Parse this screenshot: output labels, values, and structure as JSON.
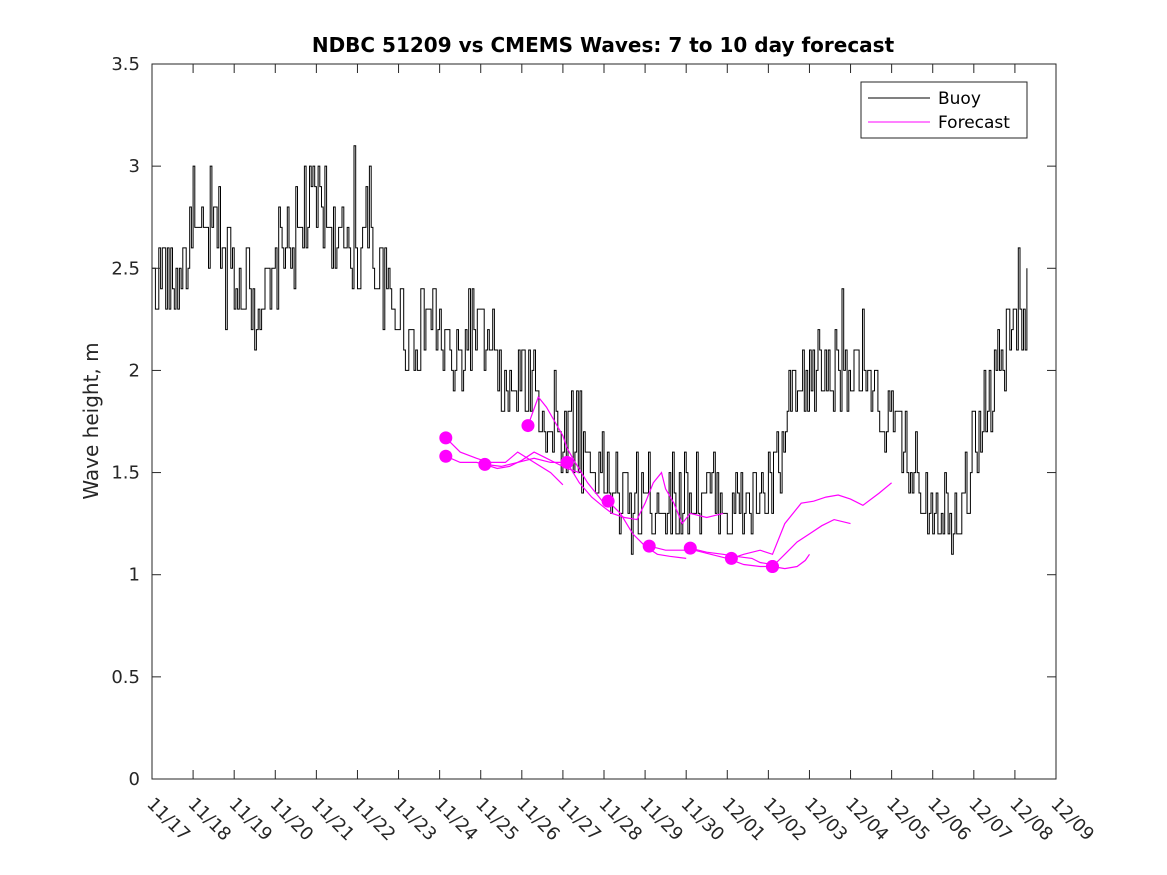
{
  "chart_data": {
    "type": "line",
    "title": "NDBC 51209 vs CMEMS Waves: 7 to 10 day forecast",
    "xlabel": "",
    "ylabel": "Wave height, m",
    "ylim": [
      0,
      3.5
    ],
    "xlim": [
      0,
      22
    ],
    "yticks": [
      0,
      0.5,
      1,
      1.5,
      2,
      2.5,
      3,
      3.5
    ],
    "ytick_labels": [
      "0",
      "0.5",
      "1",
      "1.5",
      "2",
      "2.5",
      "3",
      "3.5"
    ],
    "xticks": [
      0,
      1,
      2,
      3,
      4,
      5,
      6,
      7,
      8,
      9,
      10,
      11,
      12,
      13,
      14,
      15,
      16,
      17,
      18,
      19,
      20,
      21,
      22
    ],
    "xtick_labels": [
      "11/17",
      "11/18",
      "11/19",
      "11/20",
      "11/21",
      "11/22",
      "11/23",
      "11/24",
      "11/25",
      "11/26",
      "11/27",
      "11/28",
      "11/29",
      "11/30",
      "12/01",
      "12/02",
      "12/03",
      "12/04",
      "12/05",
      "12/06",
      "12/07",
      "12/08",
      "12/09"
    ],
    "legend": {
      "position": "top-right",
      "entries": [
        "Buoy",
        "Forecast"
      ]
    },
    "colors": {
      "buoy": "#000000",
      "forecast": "#ff00ff"
    },
    "buoy_anchors": [
      [
        0.0,
        2.45
      ],
      [
        0.3,
        2.5
      ],
      [
        0.5,
        2.4
      ],
      [
        0.8,
        2.55
      ],
      [
        1.0,
        2.6
      ],
      [
        1.3,
        2.65
      ],
      [
        1.5,
        2.7
      ],
      [
        1.8,
        2.6
      ],
      [
        2.0,
        2.5
      ],
      [
        2.3,
        2.45
      ],
      [
        2.6,
        2.35
      ],
      [
        2.9,
        2.35
      ],
      [
        3.0,
        2.5
      ],
      [
        3.2,
        2.65
      ],
      [
        3.5,
        2.6
      ],
      [
        3.8,
        2.75
      ],
      [
        4.0,
        2.85
      ],
      [
        4.3,
        2.75
      ],
      [
        4.6,
        2.6
      ],
      [
        4.9,
        2.5
      ],
      [
        5.2,
        2.7
      ],
      [
        5.5,
        2.45
      ],
      [
        5.8,
        2.3
      ],
      [
        6.0,
        2.3
      ],
      [
        6.3,
        2.15
      ],
      [
        6.5,
        2.2
      ],
      [
        6.8,
        2.3
      ],
      [
        7.0,
        2.2
      ],
      [
        7.3,
        2.0
      ],
      [
        7.6,
        2.1
      ],
      [
        7.9,
        2.25
      ],
      [
        8.1,
        2.1
      ],
      [
        8.4,
        1.95
      ],
      [
        8.7,
        1.85
      ],
      [
        9.0,
        2.0
      ],
      [
        9.2,
        1.9
      ],
      [
        9.5,
        1.8
      ],
      [
        9.8,
        1.65
      ],
      [
        10.0,
        1.7
      ],
      [
        10.3,
        1.7
      ],
      [
        10.6,
        1.55
      ],
      [
        11.0,
        1.5
      ],
      [
        11.3,
        1.4
      ],
      [
        11.6,
        1.3
      ],
      [
        11.8,
        1.35
      ],
      [
        12.0,
        1.35
      ],
      [
        12.3,
        1.4
      ],
      [
        12.6,
        1.35
      ],
      [
        13.0,
        1.4
      ],
      [
        13.3,
        1.4
      ],
      [
        13.7,
        1.4
      ],
      [
        14.0,
        1.35
      ],
      [
        14.3,
        1.3
      ],
      [
        14.6,
        1.35
      ],
      [
        14.9,
        1.4
      ],
      [
        15.1,
        1.45
      ],
      [
        15.3,
        1.55
      ],
      [
        15.5,
        1.8
      ],
      [
        15.8,
        1.9
      ],
      [
        16.0,
        1.95
      ],
      [
        16.3,
        2.0
      ],
      [
        16.6,
        2.0
      ],
      [
        16.8,
        2.05
      ],
      [
        17.0,
        2.0
      ],
      [
        17.3,
        1.9
      ],
      [
        17.6,
        1.85
      ],
      [
        18.0,
        1.7
      ],
      [
        18.3,
        1.6
      ],
      [
        18.6,
        1.5
      ],
      [
        18.9,
        1.4
      ],
      [
        19.2,
        1.35
      ],
      [
        19.5,
        1.3
      ],
      [
        19.8,
        1.45
      ],
      [
        20.0,
        1.6
      ],
      [
        20.3,
        1.85
      ],
      [
        20.6,
        2.05
      ],
      [
        20.9,
        2.2
      ],
      [
        21.1,
        2.3
      ],
      [
        21.3,
        2.3
      ]
    ],
    "buoy_peaks": [
      [
        1.0,
        3.0
      ],
      [
        1.4,
        3.0
      ],
      [
        3.5,
        2.9
      ],
      [
        3.7,
        3.0
      ],
      [
        4.2,
        3.0
      ],
      [
        4.9,
        3.1
      ],
      [
        5.3,
        3.0
      ],
      [
        2.5,
        2.1
      ],
      [
        1.8,
        2.2
      ],
      [
        2.1,
        2.3
      ],
      [
        7.7,
        2.4
      ],
      [
        8.3,
        2.3
      ],
      [
        9.3,
        2.1
      ],
      [
        9.8,
        2.0
      ],
      [
        16.8,
        2.4
      ],
      [
        17.3,
        2.3
      ],
      [
        21.1,
        2.6
      ],
      [
        11.9,
        1.5
      ],
      [
        13.0,
        1.5
      ],
      [
        14.1,
        1.2
      ],
      [
        14.6,
        1.2
      ],
      [
        19.2,
        1.3
      ],
      [
        20.4,
        1.7
      ],
      [
        15.4,
        1.7
      ],
      [
        10.2,
        1.9
      ],
      [
        10.4,
        1.9
      ]
    ],
    "series": [
      {
        "name": "Forecast",
        "start": [
          7.15,
          1.67
        ],
        "x": [
          7.15,
          7.5,
          7.9,
          8.2,
          8.6,
          8.9,
          9.3,
          9.7,
          10.0
        ],
        "y": [
          1.67,
          1.6,
          1.57,
          1.55,
          1.55,
          1.6,
          1.55,
          1.5,
          1.44
        ]
      },
      {
        "name": "Forecast",
        "start": [
          7.15,
          1.58
        ],
        "x": [
          7.15,
          7.5,
          7.9,
          8.1,
          8.5,
          8.9,
          9.3,
          9.7,
          10.0
        ],
        "y": [
          1.58,
          1.55,
          1.55,
          1.54,
          1.53,
          1.55,
          1.57,
          1.55,
          1.55
        ]
      },
      {
        "name": "Forecast",
        "start": [
          8.1,
          1.54
        ],
        "x": [
          8.1,
          8.4,
          8.7,
          9.0,
          9.3,
          9.5,
          9.8,
          10.1,
          10.4
        ],
        "y": [
          1.54,
          1.52,
          1.53,
          1.56,
          1.6,
          1.58,
          1.55,
          1.52,
          1.5
        ]
      },
      {
        "name": "Forecast",
        "start": [
          9.15,
          1.73
        ],
        "x": [
          9.15,
          9.4,
          9.6,
          9.8,
          10.0,
          10.1,
          10.3,
          10.6,
          11.0
        ],
        "y": [
          1.73,
          1.87,
          1.82,
          1.75,
          1.68,
          1.62,
          1.55,
          1.45,
          1.35
        ]
      },
      {
        "name": "Forecast",
        "start": [
          10.1,
          1.55
        ],
        "x": [
          10.1,
          10.4,
          10.7,
          11.0,
          11.2,
          11.5,
          11.8,
          12.0,
          12.2,
          12.4,
          12.5,
          12.7,
          12.9,
          13.1,
          13.5,
          13.9
        ],
        "y": [
          1.55,
          1.45,
          1.38,
          1.33,
          1.3,
          1.28,
          1.27,
          1.35,
          1.45,
          1.5,
          1.42,
          1.35,
          1.25,
          1.3,
          1.28,
          1.3
        ]
      },
      {
        "name": "Forecast",
        "start": [
          11.1,
          1.36
        ],
        "x": [
          11.1,
          11.4,
          11.7,
          12.0,
          12.3,
          12.6,
          13.0
        ],
        "y": [
          1.36,
          1.3,
          1.2,
          1.14,
          1.1,
          1.09,
          1.08
        ]
      },
      {
        "name": "Forecast",
        "start": [
          12.1,
          1.14
        ],
        "x": [
          12.1,
          12.5,
          12.9,
          13.2,
          13.6,
          14.0,
          14.4,
          14.8,
          15.1
        ],
        "y": [
          1.14,
          1.12,
          1.12,
          1.12,
          1.1,
          1.08,
          1.05,
          1.04,
          1.04
        ]
      },
      {
        "name": "Forecast",
        "start": [
          13.1,
          1.13
        ],
        "x": [
          13.1,
          13.5,
          13.9,
          14.2,
          14.6,
          14.8,
          15.1
        ],
        "y": [
          1.13,
          1.11,
          1.1,
          1.09,
          1.08,
          1.06,
          1.05
        ]
      },
      {
        "name": "Forecast",
        "start": [
          14.1,
          1.08
        ],
        "x": [
          14.1,
          14.4,
          14.8,
          15.1,
          15.4,
          15.8,
          16.1,
          16.4,
          16.7,
          17.0,
          17.3,
          17.7,
          18.0
        ],
        "y": [
          1.08,
          1.1,
          1.12,
          1.1,
          1.25,
          1.35,
          1.36,
          1.38,
          1.39,
          1.37,
          1.34,
          1.4,
          1.45
        ]
      },
      {
        "name": "Forecast",
        "start": [
          15.1,
          1.04
        ],
        "x": [
          15.1,
          15.4,
          15.7,
          16.0,
          16.3,
          16.6,
          17.0
        ],
        "y": [
          1.04,
          1.1,
          1.16,
          1.2,
          1.24,
          1.27,
          1.25
        ]
      },
      {
        "name": "Forecast",
        "start": [
          15.1,
          1.04
        ],
        "x": [
          15.1,
          15.4,
          15.7,
          15.9,
          16.0
        ],
        "y": [
          1.04,
          1.03,
          1.04,
          1.07,
          1.1
        ]
      }
    ]
  }
}
